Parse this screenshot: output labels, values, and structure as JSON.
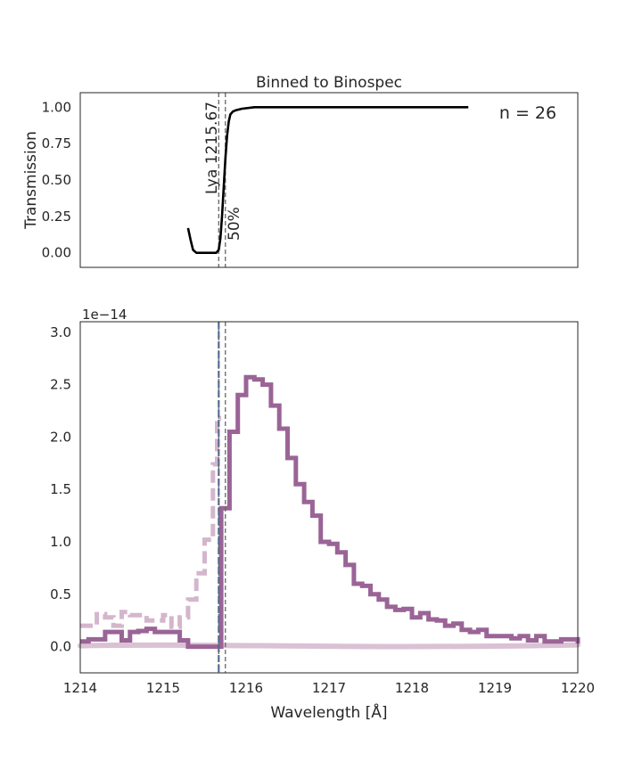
{
  "chart_data": [
    {
      "type": "line",
      "title": "Binned to Binospec",
      "xlabel": "",
      "ylabel": "Transmission",
      "xlim": [
        1214,
        1220
      ],
      "ylim": [
        -0.1,
        1.1
      ],
      "x_ticks_visible": false,
      "y_ticks": [
        "0.00",
        "0.25",
        "0.50",
        "0.75",
        "1.00"
      ],
      "grid": false,
      "series": [
        {
          "color": "#000000",
          "style": "solid",
          "x": [
            1215.3,
            1215.33,
            1215.36,
            1215.4,
            1215.45,
            1215.5,
            1215.55,
            1215.6,
            1215.64,
            1215.67,
            1215.69,
            1215.71,
            1215.73,
            1215.75,
            1215.77,
            1215.79,
            1215.81,
            1215.84,
            1215.88,
            1215.95,
            1216.1,
            1216.5,
            1217.0,
            1218.0,
            1218.68
          ],
          "y": [
            0.17,
            0.09,
            0.02,
            0.0,
            0.0,
            0.0,
            0.0,
            0.0,
            0.0,
            0.02,
            0.1,
            0.25,
            0.45,
            0.65,
            0.8,
            0.9,
            0.95,
            0.97,
            0.98,
            0.99,
            1.0,
            1.0,
            1.0,
            1.0,
            1.0
          ]
        }
      ],
      "vlines": [
        {
          "x": 1215.67,
          "label": "Lya 1215.67",
          "color": "#666666"
        },
        {
          "x": 1215.75,
          "label": "50%",
          "color": "#666666"
        }
      ],
      "annotation": "n = 26"
    },
    {
      "type": "line",
      "title": "",
      "xlabel": "Wavelength [Å]",
      "ylabel": "",
      "xlim": [
        1214,
        1220
      ],
      "ylim": [
        -0.25,
        3.1
      ],
      "offset_text": "1e−14",
      "x_ticks": [
        "1214",
        "1215",
        "1216",
        "1217",
        "1218",
        "1219",
        "1220"
      ],
      "y_ticks": [
        "0.0",
        "0.5",
        "1.0",
        "1.5",
        "2.0",
        "2.5",
        "3.0"
      ],
      "grid": false,
      "series": [
        {
          "color": "#9a6496",
          "style": "solid-step",
          "x": [
            1214.0,
            1214.1,
            1214.2,
            1214.3,
            1214.4,
            1214.5,
            1214.6,
            1214.7,
            1214.8,
            1214.9,
            1215.0,
            1215.1,
            1215.2,
            1215.3,
            1215.4,
            1215.5,
            1215.6,
            1215.65,
            1215.7,
            1215.8,
            1215.9,
            1216.0,
            1216.1,
            1216.2,
            1216.3,
            1216.4,
            1216.5,
            1216.6,
            1216.7,
            1216.8,
            1216.9,
            1217.0,
            1217.1,
            1217.2,
            1217.3,
            1217.4,
            1217.5,
            1217.6,
            1217.7,
            1217.8,
            1217.9,
            1218.0,
            1218.1,
            1218.2,
            1218.3,
            1218.4,
            1218.5,
            1218.6,
            1218.7,
            1218.8,
            1218.9,
            1219.0,
            1219.1,
            1219.2,
            1219.3,
            1219.4,
            1219.5,
            1219.6,
            1219.7,
            1219.8,
            1219.9,
            1220.0
          ],
          "y": [
            0.05,
            0.07,
            0.07,
            0.14,
            0.14,
            0.06,
            0.14,
            0.15,
            0.17,
            0.14,
            0.14,
            0.14,
            0.06,
            0.0,
            0.0,
            0.0,
            0.0,
            0.0,
            1.32,
            2.05,
            2.4,
            2.57,
            2.55,
            2.5,
            2.3,
            2.08,
            1.8,
            1.55,
            1.38,
            1.25,
            1.0,
            0.98,
            0.9,
            0.78,
            0.6,
            0.58,
            0.5,
            0.45,
            0.38,
            0.35,
            0.36,
            0.28,
            0.32,
            0.26,
            0.25,
            0.2,
            0.22,
            0.16,
            0.14,
            0.16,
            0.1,
            0.1,
            0.1,
            0.08,
            0.1,
            0.06,
            0.1,
            0.05,
            0.05,
            0.07,
            0.07,
            0.03
          ]
        },
        {
          "color": "#d4b6cc",
          "style": "dashed-step",
          "x": [
            1214.0,
            1214.1,
            1214.2,
            1214.3,
            1214.4,
            1214.5,
            1214.6,
            1214.7,
            1214.8,
            1214.9,
            1215.0,
            1215.1,
            1215.2,
            1215.3,
            1215.4,
            1215.5,
            1215.6,
            1215.65,
            1215.7
          ],
          "y": [
            0.2,
            0.2,
            0.31,
            0.28,
            0.2,
            0.33,
            0.3,
            0.3,
            0.25,
            0.25,
            0.3,
            0.19,
            0.28,
            0.45,
            0.7,
            1.02,
            1.74,
            2.18,
            2.18
          ]
        },
        {
          "color": "#d4b6cc",
          "style": "band",
          "x": [
            1214.0,
            1220.0
          ],
          "y": [
            0.0,
            0.0
          ]
        }
      ],
      "vlines": [
        {
          "x": 1215.67,
          "color": "#4c72b0"
        },
        {
          "x": 1215.67,
          "color": "#666666"
        },
        {
          "x": 1215.75,
          "color": "#666666"
        }
      ]
    }
  ]
}
